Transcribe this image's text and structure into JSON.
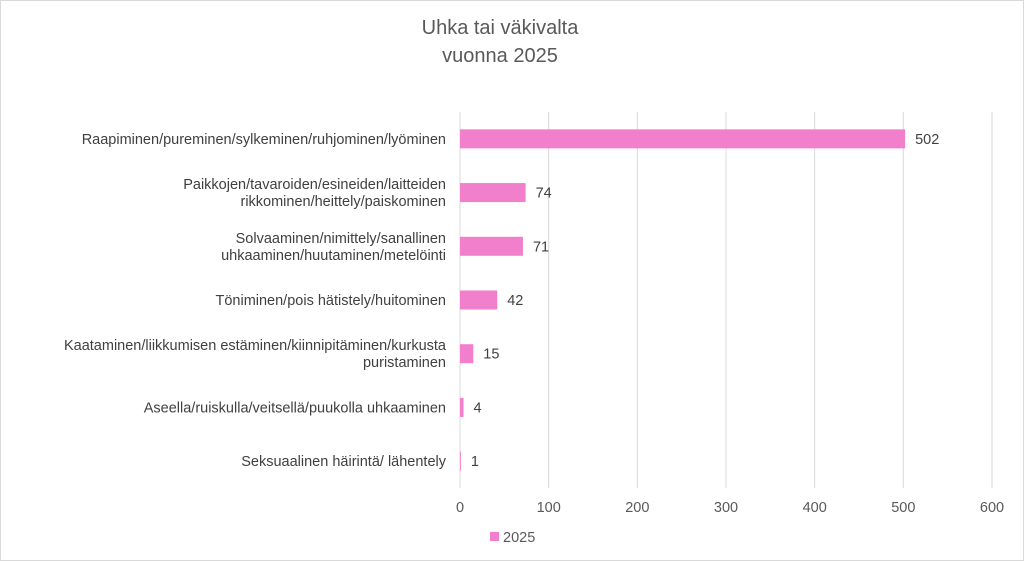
{
  "chart_data": {
    "type": "bar",
    "orientation": "horizontal",
    "title": [
      "Uhka tai väkivalta",
      "vuonna 2025"
    ],
    "categories": [
      [
        "Raapiminen/pureminen/sylkeminen/ruhjominen/lyöminen"
      ],
      [
        "Paikkojen/tavaroiden/esineiden/laitteiden",
        "rikkominen/heittely/paiskominen"
      ],
      [
        "Solvaaminen/nimittely/sanallinen",
        "uhkaaminen/huutaminen/metelöinti"
      ],
      [
        "Töniminen/pois hätistely/huitominen"
      ],
      [
        "Kaataminen/liikkumisen estäminen/kiinnipitäminen/kurkusta",
        "puristaminen"
      ],
      [
        "Aseella/ruiskulla/veitsellä/puukolla uhkaaminen"
      ],
      [
        "Seksuaalinen häirintä/ lähentely"
      ]
    ],
    "series": [
      {
        "name": "2025",
        "values": [
          502,
          74,
          71,
          42,
          15,
          4,
          1
        ],
        "color": "#f27fcb"
      }
    ],
    "xlim": [
      0,
      600
    ],
    "xticks": [
      0,
      100,
      200,
      300,
      400,
      500,
      600
    ],
    "grid": true,
    "legend": "bottom-center",
    "gridline_color": "#d9d9d9"
  }
}
